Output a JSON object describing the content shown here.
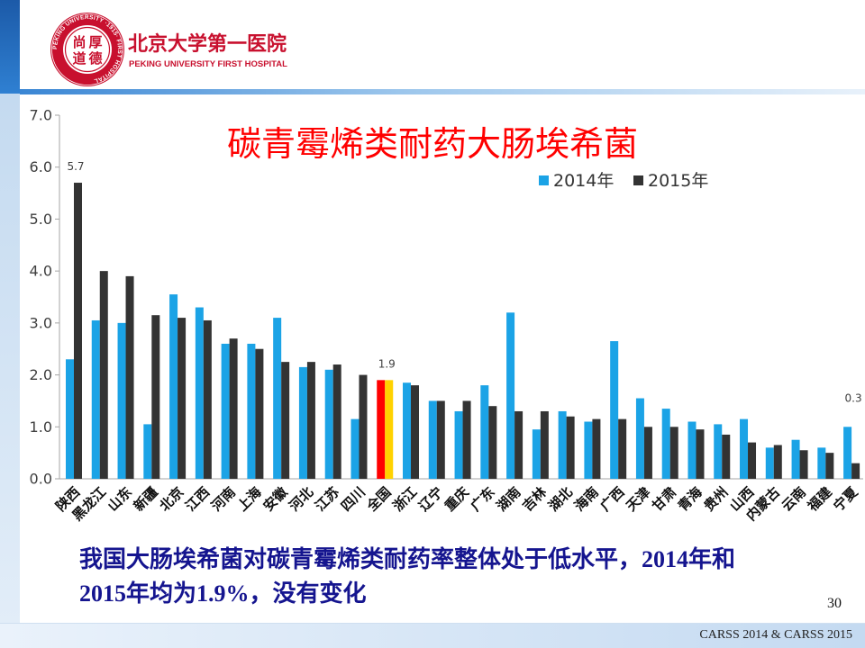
{
  "header": {
    "name_cn": "北京大学第一医院",
    "name_en": "PEKING UNIVERSITY FIRST HOSPITAL",
    "logo": {
      "motto_chars": [
        "尚",
        "厚",
        "道",
        "德"
      ],
      "ring_text": "PEKING UNIVERSITY ·1915· FIRST HOSPITAL"
    }
  },
  "chart_data": {
    "type": "bar",
    "title": "碳青霉烯类耐药大肠埃希菌",
    "xlabel": "",
    "ylabel": "",
    "ylim": [
      0,
      7
    ],
    "yticks": [
      "0.0",
      "1.0",
      "2.0",
      "3.0",
      "4.0",
      "5.0",
      "6.0",
      "7.0"
    ],
    "grid": false,
    "legend_position": "top-right",
    "categories": [
      "陕西",
      "黑龙江",
      "山东",
      "新疆",
      "北京",
      "江西",
      "河南",
      "上海",
      "安徽",
      "河北",
      "江苏",
      "四川",
      "全国",
      "浙江",
      "辽宁",
      "重庆",
      "广东",
      "湖南",
      "吉林",
      "湖北",
      "海南",
      "广西",
      "天津",
      "甘肃",
      "青海",
      "贵州",
      "山西",
      "内蒙古",
      "云南",
      "福建",
      "宁夏"
    ],
    "series": [
      {
        "name": "2014年",
        "color": "#1ba3e6",
        "values": [
          2.3,
          3.05,
          3.0,
          1.05,
          3.55,
          3.3,
          2.6,
          2.6,
          3.1,
          2.15,
          2.1,
          1.15,
          1.9,
          1.85,
          1.5,
          1.3,
          1.8,
          3.2,
          0.95,
          1.3,
          1.1,
          2.65,
          1.55,
          1.35,
          1.1,
          1.05,
          1.15,
          0.6,
          0.75,
          0.6,
          1.0
        ]
      },
      {
        "name": "2015年",
        "color": "#333333",
        "values": [
          5.7,
          4.0,
          3.9,
          3.15,
          3.1,
          3.05,
          2.7,
          2.5,
          2.25,
          2.25,
          2.2,
          2.0,
          1.9,
          1.8,
          1.5,
          1.5,
          1.4,
          1.3,
          1.3,
          1.2,
          1.15,
          1.15,
          1.0,
          1.0,
          0.95,
          0.85,
          0.7,
          0.65,
          0.55,
          0.5,
          0.3
        ]
      }
    ],
    "highlight": {
      "category": "全国",
      "colors": [
        "#ff0000",
        "#ffd200"
      ]
    },
    "annotations": [
      {
        "category": "陕西",
        "text": "5.7"
      },
      {
        "category": "全国",
        "text": "1.9"
      },
      {
        "category": "宁夏",
        "text": "0.3"
      }
    ]
  },
  "caption": {
    "line1": "我国大肠埃希菌对碳青霉烯类耐药率整体处于低水平，2014年和",
    "line2": "2015年均为1.9%，没有变化"
  },
  "page_number": "30",
  "footer_text": "CARSS 2014 & CARSS 2015",
  "colors": {
    "title": "#ff0000",
    "brand_red": "#c8102e",
    "caption": "#15158f",
    "axis": "#a6a6a6"
  }
}
